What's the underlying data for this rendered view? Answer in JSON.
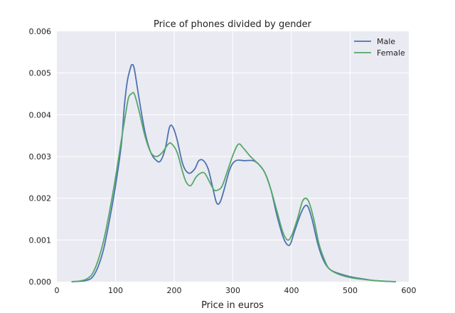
{
  "chart_data": {
    "type": "line",
    "title": "Price of phones divided by gender",
    "xlabel": "Price in euros",
    "ylabel": "",
    "xlim": [
      0,
      600
    ],
    "ylim": [
      0,
      0.006
    ],
    "xticks": [
      "0",
      "100",
      "200",
      "300",
      "400",
      "500",
      "600"
    ],
    "yticks": [
      "0.000",
      "0.001",
      "0.002",
      "0.003",
      "0.004",
      "0.005",
      "0.006"
    ],
    "grid": true,
    "legend_position": "top-right",
    "colors": {
      "background": "#EAEAF2",
      "grid": "#FFFFFF",
      "male": "#4C72B0",
      "female": "#55A868"
    },
    "series": [
      {
        "name": "Male",
        "color": "#4C72B0",
        "points": [
          [
            25,
            0
          ],
          [
            40,
            1e-05
          ],
          [
            50,
            3e-05
          ],
          [
            60,
            0.0001
          ],
          [
            70,
            0.00035
          ],
          [
            80,
            0.0008
          ],
          [
            90,
            0.0015
          ],
          [
            100,
            0.0023
          ],
          [
            110,
            0.0033
          ],
          [
            115,
            0.0042
          ],
          [
            120,
            0.0048
          ],
          [
            125,
            0.0051
          ],
          [
            128,
            0.0052
          ],
          [
            132,
            0.0051
          ],
          [
            140,
            0.0044
          ],
          [
            150,
            0.0036
          ],
          [
            160,
            0.0031
          ],
          [
            170,
            0.0029
          ],
          [
            177,
            0.0029
          ],
          [
            185,
            0.0032
          ],
          [
            192,
            0.0037
          ],
          [
            198,
            0.0037
          ],
          [
            205,
            0.0034
          ],
          [
            215,
            0.0028
          ],
          [
            225,
            0.0026
          ],
          [
            235,
            0.0027
          ],
          [
            242,
            0.0029
          ],
          [
            250,
            0.0029
          ],
          [
            258,
            0.0027
          ],
          [
            265,
            0.0023
          ],
          [
            272,
            0.0019
          ],
          [
            278,
            0.0019
          ],
          [
            285,
            0.0022
          ],
          [
            295,
            0.0027
          ],
          [
            305,
            0.0029
          ],
          [
            320,
            0.0029
          ],
          [
            335,
            0.0029
          ],
          [
            345,
            0.0028
          ],
          [
            355,
            0.0026
          ],
          [
            365,
            0.0022
          ],
          [
            375,
            0.0016
          ],
          [
            385,
            0.0011
          ],
          [
            392,
            0.0009
          ],
          [
            398,
            0.0009
          ],
          [
            405,
            0.0012
          ],
          [
            415,
            0.0016
          ],
          [
            422,
            0.0018
          ],
          [
            428,
            0.0018
          ],
          [
            435,
            0.0015
          ],
          [
            445,
            0.0009
          ],
          [
            455,
            0.0005
          ],
          [
            465,
            0.0003
          ],
          [
            480,
            0.0002
          ],
          [
            500,
            0.00012
          ],
          [
            520,
            7e-05
          ],
          [
            540,
            3e-05
          ],
          [
            560,
            1e-05
          ],
          [
            578,
            0
          ]
        ]
      },
      {
        "name": "Female",
        "color": "#55A868",
        "points": [
          [
            25,
            0
          ],
          [
            40,
            2e-05
          ],
          [
            50,
            6e-05
          ],
          [
            60,
            0.00018
          ],
          [
            70,
            0.0005
          ],
          [
            80,
            0.001
          ],
          [
            90,
            0.0017
          ],
          [
            100,
            0.0025
          ],
          [
            110,
            0.0034
          ],
          [
            117,
            0.004
          ],
          [
            122,
            0.0044
          ],
          [
            127,
            0.0045
          ],
          [
            132,
            0.0045
          ],
          [
            140,
            0.0041
          ],
          [
            150,
            0.0035
          ],
          [
            160,
            0.0031
          ],
          [
            170,
            0.003
          ],
          [
            180,
            0.0031
          ],
          [
            190,
            0.0033
          ],
          [
            196,
            0.0033
          ],
          [
            205,
            0.0031
          ],
          [
            213,
            0.0027
          ],
          [
            220,
            0.0024
          ],
          [
            228,
            0.0023
          ],
          [
            237,
            0.0025
          ],
          [
            245,
            0.0026
          ],
          [
            252,
            0.0026
          ],
          [
            260,
            0.0024
          ],
          [
            268,
            0.0022
          ],
          [
            275,
            0.0022
          ],
          [
            282,
            0.0023
          ],
          [
            292,
            0.0027
          ],
          [
            302,
            0.0031
          ],
          [
            310,
            0.0033
          ],
          [
            318,
            0.0032
          ],
          [
            330,
            0.003
          ],
          [
            345,
            0.0028
          ],
          [
            355,
            0.0026
          ],
          [
            365,
            0.0022
          ],
          [
            375,
            0.0017
          ],
          [
            385,
            0.0012
          ],
          [
            393,
            0.001
          ],
          [
            400,
            0.0011
          ],
          [
            410,
            0.0015
          ],
          [
            418,
            0.0019
          ],
          [
            424,
            0.002
          ],
          [
            430,
            0.0019
          ],
          [
            438,
            0.0015
          ],
          [
            447,
            0.0009
          ],
          [
            457,
            0.0005
          ],
          [
            465,
            0.0003
          ],
          [
            480,
            0.00018
          ],
          [
            500,
            0.0001
          ],
          [
            520,
            6e-05
          ],
          [
            540,
            3e-05
          ],
          [
            560,
            1e-05
          ],
          [
            578,
            0
          ]
        ]
      }
    ]
  }
}
